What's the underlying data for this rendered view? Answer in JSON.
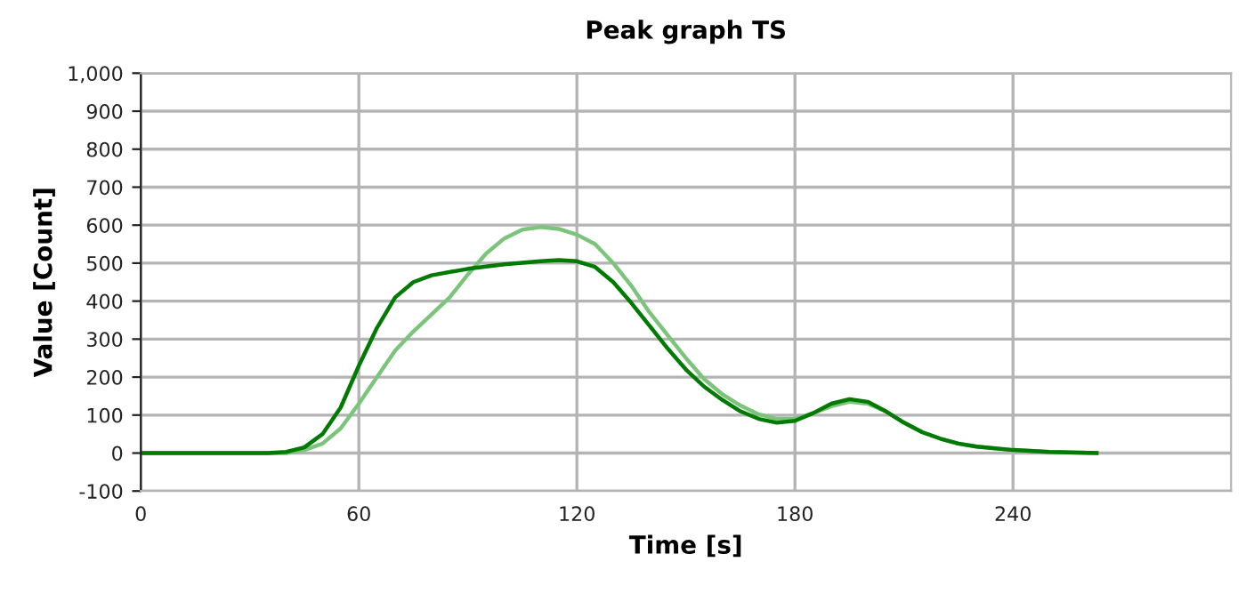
{
  "chart_data": {
    "type": "line",
    "title": "Peak graph TS",
    "xlabel": "Time [s]",
    "ylabel": "Value [Count]",
    "xlim": [
      0,
      300
    ],
    "xticks": [
      0,
      60,
      120,
      180,
      240
    ],
    "ylim": [
      -100,
      1000
    ],
    "yticks": [
      {
        "value": -100,
        "label": "-100"
      },
      0,
      100,
      200,
      300,
      400,
      500,
      600,
      700,
      800,
      900,
      {
        "value": 1000,
        "label": "1,000"
      }
    ],
    "grid": true,
    "legend": false,
    "marker": "none",
    "line_style": "solid",
    "series": [
      {
        "color": "#7cc47c",
        "x": [
          0,
          10,
          20,
          30,
          40,
          45,
          50,
          55,
          60,
          65,
          70,
          75,
          80,
          85,
          90,
          95,
          100,
          105,
          110,
          115,
          120,
          125,
          130,
          135,
          140,
          145,
          150,
          155,
          160,
          165,
          170,
          175,
          180,
          185,
          190,
          195,
          200,
          205,
          210,
          215,
          220,
          225,
          230,
          240,
          250,
          263
        ],
        "values": [
          0,
          0,
          0,
          0,
          0,
          8,
          25,
          65,
          130,
          200,
          270,
          320,
          365,
          410,
          470,
          525,
          565,
          588,
          595,
          590,
          575,
          550,
          500,
          440,
          370,
          310,
          250,
          195,
          155,
          125,
          102,
          90,
          90,
          105,
          123,
          135,
          130,
          110,
          80,
          55,
          38,
          25,
          17,
          8,
          3,
          0
        ]
      },
      {
        "color": "#007a00",
        "x": [
          0,
          10,
          20,
          30,
          35,
          40,
          45,
          50,
          55,
          60,
          65,
          70,
          75,
          80,
          90,
          100,
          110,
          115,
          120,
          125,
          130,
          135,
          140,
          145,
          150,
          155,
          160,
          165,
          170,
          175,
          180,
          185,
          190,
          195,
          200,
          205,
          210,
          215,
          220,
          225,
          230,
          240,
          250,
          263
        ],
        "values": [
          0,
          0,
          0,
          0,
          0,
          3,
          15,
          50,
          120,
          230,
          330,
          410,
          450,
          468,
          485,
          497,
          505,
          508,
          505,
          490,
          450,
          395,
          335,
          275,
          220,
          175,
          140,
          110,
          90,
          80,
          85,
          105,
          130,
          142,
          135,
          110,
          80,
          55,
          38,
          25,
          17,
          8,
          3,
          0
        ]
      }
    ]
  }
}
